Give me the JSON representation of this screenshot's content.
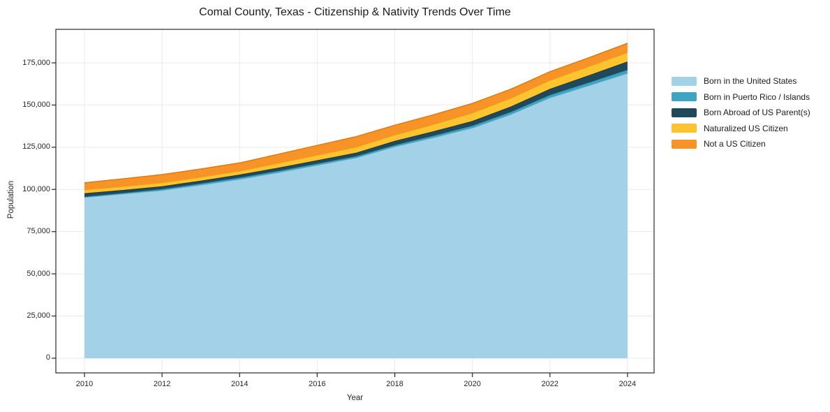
{
  "title": "Comal County, Texas - Citizenship & Nativity Trends Over Time",
  "chart_data": {
    "type": "area",
    "stacked": true,
    "title": "Comal County, Texas - Citizenship & Nativity Trends Over Time",
    "xlabel": "Year",
    "ylabel": "Population",
    "grid": true,
    "legend_position": "right-outside",
    "x": [
      2010,
      2011,
      2012,
      2013,
      2014,
      2015,
      2016,
      2017,
      2018,
      2019,
      2020,
      2021,
      2022,
      2023,
      2024
    ],
    "series": [
      {
        "name": "Born in the United States",
        "color": "#a3d2e8",
        "edge": "#7fb9d8",
        "values": [
          95300,
          97300,
          99400,
          102600,
          106000,
          110000,
          114300,
          118700,
          125300,
          130700,
          136400,
          144500,
          154300,
          161500,
          168800
        ]
      },
      {
        "name": "Born in Puerto Rico / Islands",
        "color": "#3da5c2",
        "edge": "#2c89a3",
        "values": [
          400,
          600,
          800,
          900,
          1000,
          1000,
          1000,
          950,
          950,
          1150,
          1350,
          1500,
          1650,
          1850,
          2050
        ]
      },
      {
        "name": "Born Abroad of US Parent(s)",
        "color": "#21495c",
        "edge": "#14303e",
        "values": [
          2000,
          1800,
          1700,
          1700,
          1800,
          1900,
          2000,
          2100,
          2500,
          2600,
          2800,
          3200,
          3600,
          4250,
          4950
        ]
      },
      {
        "name": "Naturalized US Citizen",
        "color": "#fdc42f",
        "edge": "#e5a816",
        "values": [
          2100,
          2100,
          2100,
          2100,
          2100,
          2700,
          3000,
          3300,
          3500,
          4100,
          4800,
          4950,
          5100,
          5230,
          5370
        ]
      },
      {
        "name": "Not a US Citizen",
        "color": "#f79327",
        "edge": "#de7b10",
        "values": [
          4100,
          4500,
          4800,
          4800,
          4800,
          5300,
          5800,
          6200,
          5800,
          5700,
          5600,
          5300,
          5100,
          5200,
          5400
        ]
      }
    ],
    "x_ticks": [
      2010,
      2012,
      2014,
      2016,
      2018,
      2020,
      2022,
      2024
    ],
    "x_tick_labels": [
      "2010",
      "2012",
      "2014",
      "2016",
      "2018",
      "2020",
      "2022",
      "2024"
    ],
    "y_ticks": [
      0,
      25000,
      50000,
      75000,
      100000,
      125000,
      150000,
      175000
    ],
    "y_tick_labels": [
      "0",
      "25,000",
      "50,000",
      "75,000",
      "100,000",
      "125,000",
      "150,000",
      "175,000"
    ],
    "xlim": [
      2009.262,
      2024.685
    ],
    "ylim": [
      -8700,
      194860
    ],
    "grid_color": "#e9e9e9",
    "spine_color": "#2a2a2a",
    "tick_color": "#262626"
  }
}
